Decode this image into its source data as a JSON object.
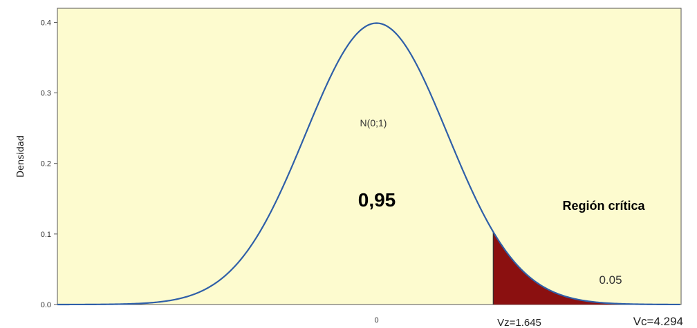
{
  "chart_data": {
    "type": "area",
    "ylabel": "Densidad",
    "xlim": [
      -4.5,
      4.294
    ],
    "ylim": [
      0,
      0.42
    ],
    "yticks": [
      "0.0",
      "0.1",
      "0.2",
      "0.3",
      "0.4"
    ],
    "ytick_values": [
      0,
      0.1,
      0.2,
      0.3,
      0.4
    ],
    "xticks": [
      "0"
    ],
    "xtick_values": [
      0
    ],
    "grid": false,
    "distribution": {
      "mean": 0,
      "sd": 1
    },
    "critical_start": 1.645,
    "annotations": {
      "distribution": "N(0;1)",
      "probability": "0,95",
      "region": "Región crítica",
      "tail_prob": "0.05",
      "vz": "Vz=1.645",
      "vc": "Vc=4.294"
    },
    "colors": {
      "background": "#FDFBCF",
      "curve": "#2F5FA8",
      "shade": "#8B1010",
      "axis": "#555555"
    }
  }
}
